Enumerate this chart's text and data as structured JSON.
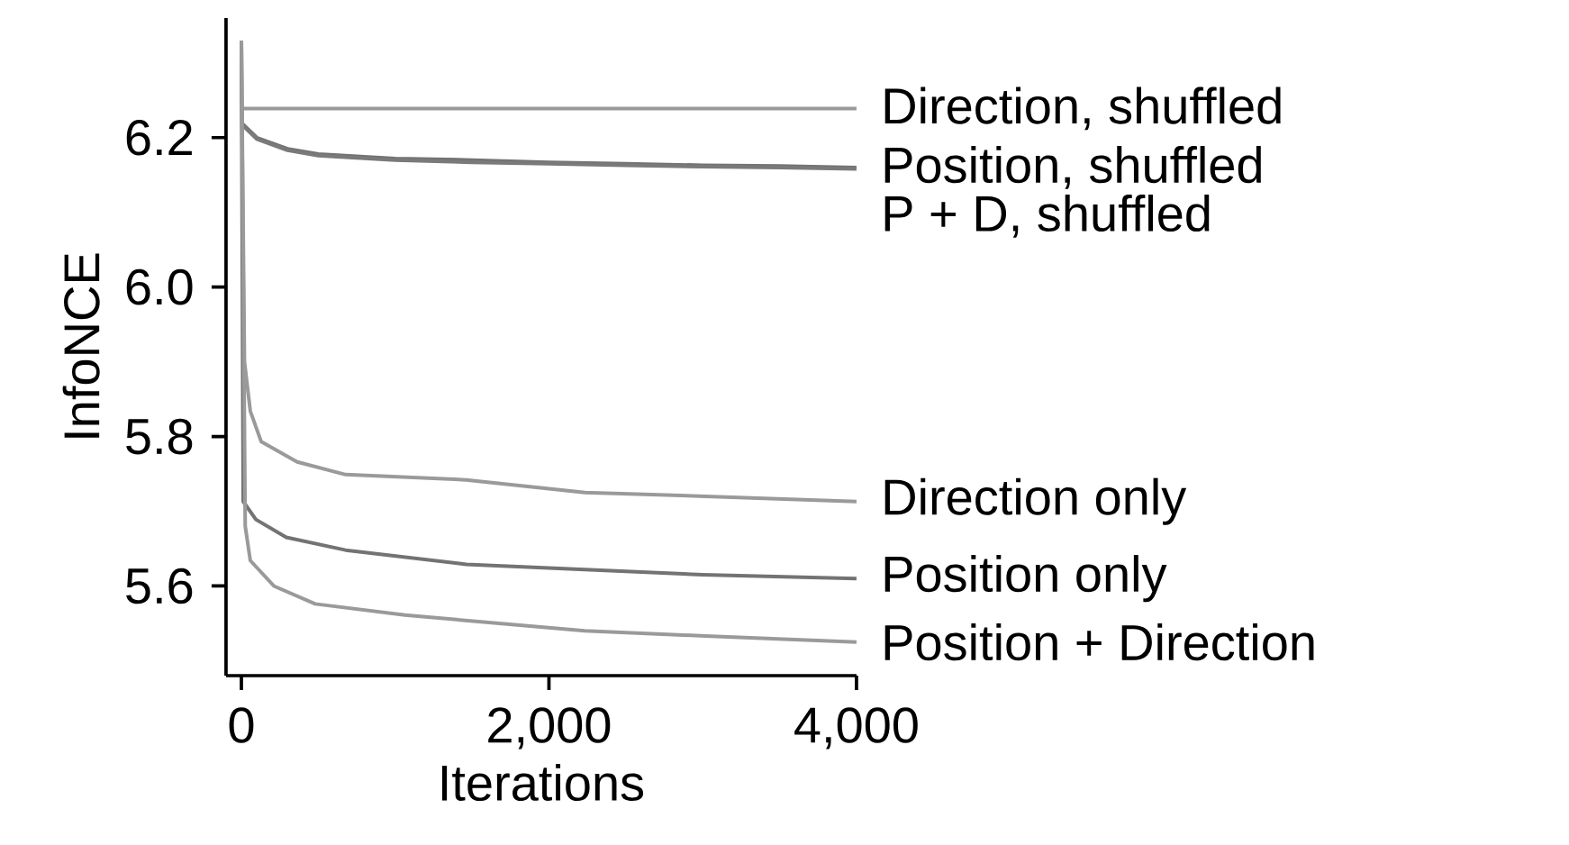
{
  "chart_data": {
    "type": "line",
    "xlabel": "Iterations",
    "ylabel": "InfoNCE",
    "xlim": [
      -100,
      4000
    ],
    "ylim": [
      5.48,
      6.36
    ],
    "xticks": [
      0,
      {
        "value": 2000,
        "label": "2,000"
      },
      {
        "value": 4000,
        "label": "4,000"
      }
    ],
    "yticks": [
      5.6,
      5.8,
      {
        "value": 6,
        "label": "6.0"
      },
      6.2
    ],
    "series": [
      {
        "name": "Direction, shuffled",
        "color": "#9a9a9a",
        "x": [
          0,
          1000,
          2000,
          3000,
          4000
        ],
        "values": [
          6.239,
          6.239,
          6.239,
          6.239,
          6.239
        ]
      },
      {
        "name": "Position, shuffled",
        "color": "#737373",
        "x": [
          0,
          100,
          300,
          500,
          1000,
          1500,
          2000,
          2500,
          3000,
          3500,
          4000
        ],
        "values": [
          6.22,
          6.2,
          6.185,
          6.178,
          6.172,
          6.17,
          6.167,
          6.165,
          6.163,
          6.162,
          6.16
        ]
      },
      {
        "name": "P + D, shuffled",
        "color": "#7a7a7a",
        "x": [
          0,
          100,
          300,
          500,
          1000,
          1500,
          2000,
          2500,
          3000,
          3500,
          4000
        ],
        "values": [
          6.218,
          6.198,
          6.183,
          6.176,
          6.17,
          6.167,
          6.165,
          6.163,
          6.161,
          6.16,
          6.158
        ]
      },
      {
        "name": "Direction only",
        "color": "#9a9a9a",
        "x": [
          0,
          20,
          58,
          129,
          363,
          678,
          1462,
          2234,
          3018,
          4000
        ],
        "values": [
          6.33,
          5.9,
          5.834,
          5.793,
          5.766,
          5.749,
          5.742,
          5.725,
          5.72,
          5.713
        ]
      },
      {
        "name": "Position only",
        "color": "#737373",
        "x": [
          0,
          12,
          94,
          292,
          678,
          1462,
          2234,
          3000,
          4000
        ],
        "values": [
          6.33,
          5.713,
          5.689,
          5.665,
          5.648,
          5.629,
          5.622,
          5.615,
          5.61
        ]
      },
      {
        "name": "Position + Direction",
        "color": "#9a9a9a",
        "x": [
          0,
          25,
          58,
          211,
          480,
          1064,
          2234,
          3018,
          4000
        ],
        "values": [
          6.33,
          5.68,
          5.634,
          5.6,
          5.576,
          5.561,
          5.54,
          5.533,
          5.525
        ]
      }
    ]
  }
}
